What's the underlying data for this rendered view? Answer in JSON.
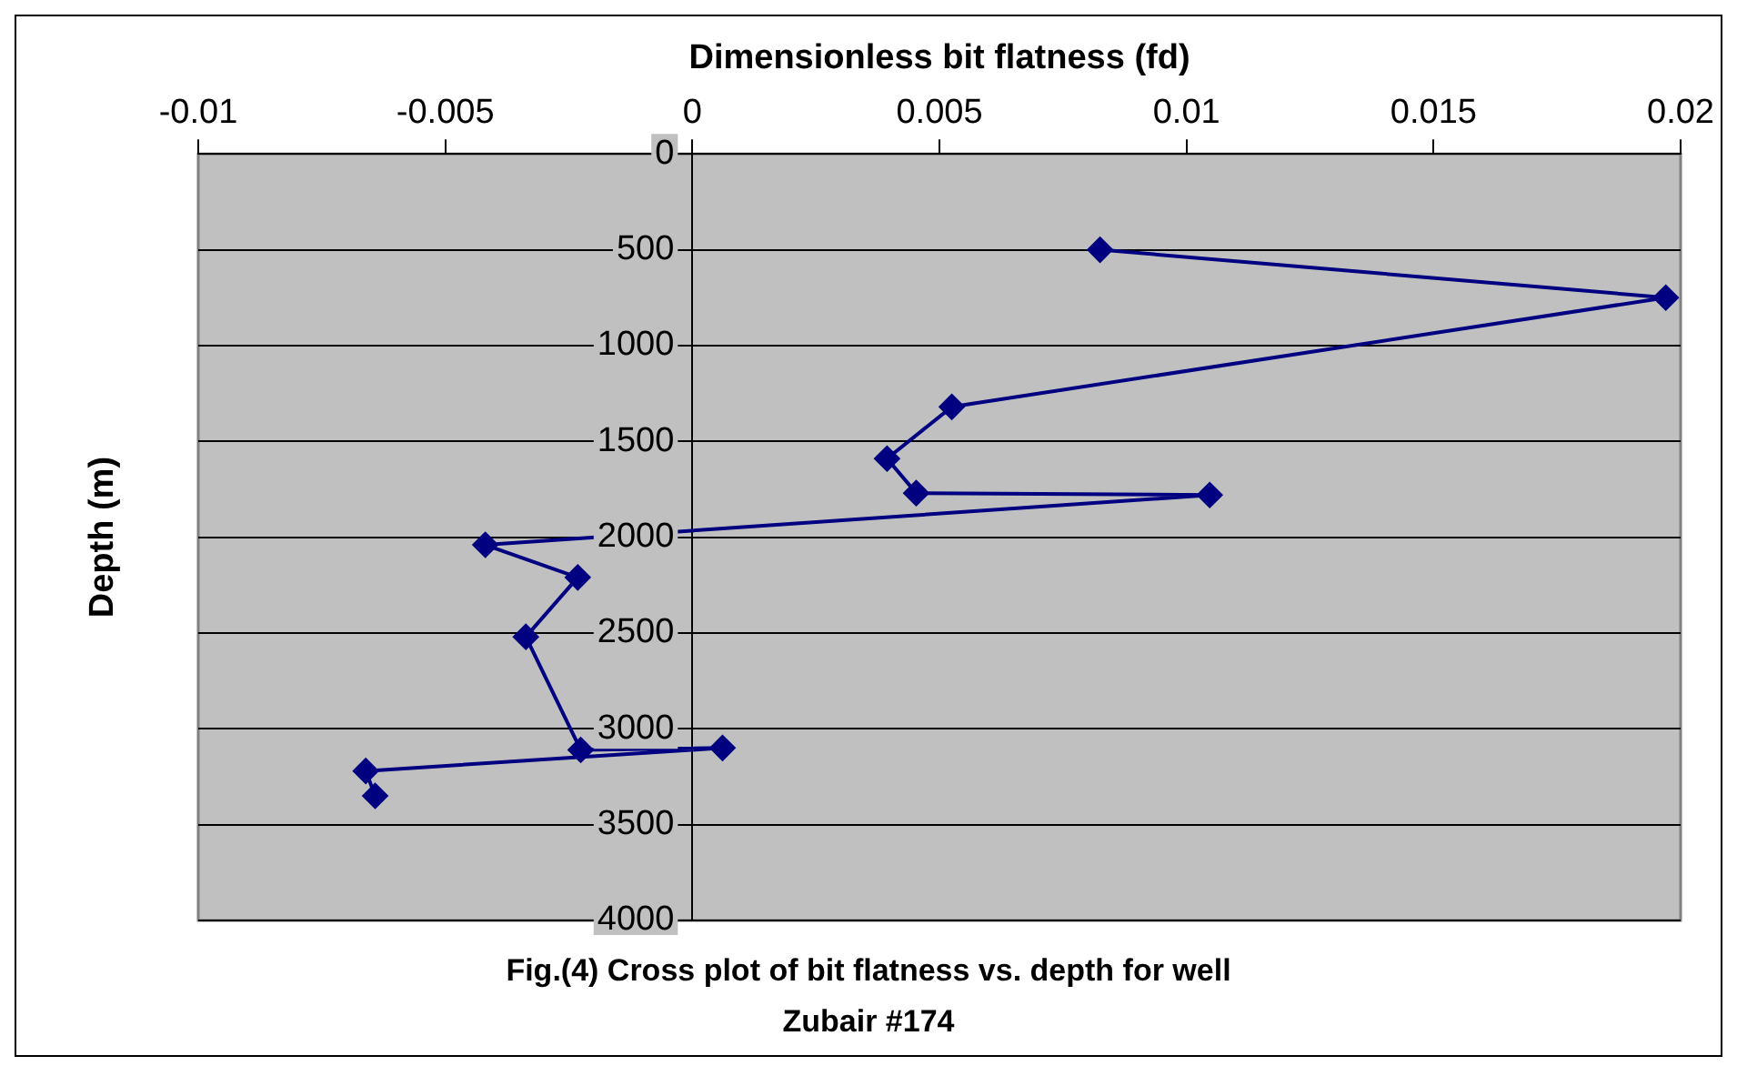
{
  "chart_data": {
    "type": "line",
    "xlabel": "Dimensionless bit flatness (fd)",
    "ylabel": "Depth (m)",
    "annotations": [
      "Fig.(4) Cross plot of bit flatness vs. depth for well Zubair #174"
    ],
    "series": [
      {
        "color": "#000080",
        "x": [
          0.00825,
          0.0197,
          0.00525,
          0.00394,
          0.00453,
          0.01047,
          -0.00419,
          -0.00232,
          -0.00337,
          -0.00226,
          0.00061,
          -0.00661,
          -0.00642
        ],
        "values": [
          500,
          750,
          1320,
          1590,
          1770,
          1780,
          2040,
          2210,
          2520,
          3110,
          3100,
          3220,
          3350
        ]
      }
    ],
    "xlim": [
      -0.01,
      0.02
    ],
    "xticks": [
      -0.01,
      -0.005,
      0,
      0.005,
      0.01,
      0.015,
      0.02
    ],
    "ylim": [
      4000,
      0
    ],
    "yticks": [
      0,
      500,
      1000,
      1500,
      2000,
      2500,
      3000,
      3500,
      4000
    ],
    "grid": "y",
    "marker": "diamond",
    "line_style": "solid"
  }
}
